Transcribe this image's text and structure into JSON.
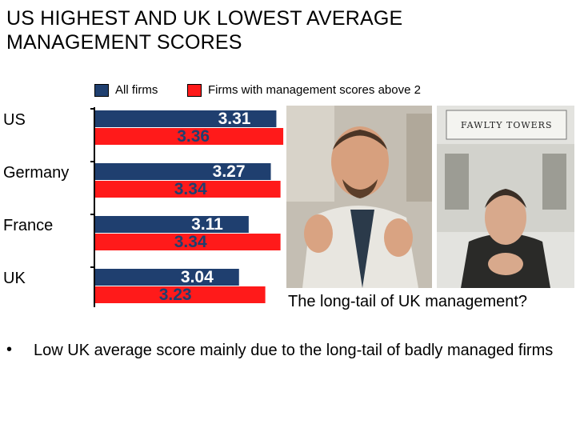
{
  "title_lines": [
    "US HIGHEST AND UK LOWEST AVERAGE",
    "MANAGEMENT SCORES"
  ],
  "colors": {
    "all_firms": "#1f3f6f",
    "above_2": "#ff1a1a",
    "axis": "#000000"
  },
  "chart_data": {
    "type": "bar",
    "orientation": "horizontal",
    "categories": [
      "US",
      "Germany",
      "France",
      "UK"
    ],
    "series": [
      {
        "name": "All firms",
        "values": [
          3.31,
          3.27,
          3.11,
          3.04
        ]
      },
      {
        "name": "Firms with management scores above 2",
        "values": [
          3.36,
          3.34,
          3.34,
          3.23
        ]
      }
    ],
    "data_labels": [
      [
        "3.31",
        "3.27",
        "3.11",
        "3.04"
      ],
      [
        "3.36",
        "3.34",
        "3.34",
        "3.23"
      ]
    ],
    "xlim": [
      2.0,
      3.4
    ],
    "legend_position": "top",
    "grid": false
  },
  "images": {
    "left_photo": "office-manager-photo",
    "right_photo": "hotel-owner-photo",
    "sign_text": "FAWLTY TOWERS"
  },
  "caption": "The long-tail of UK management?",
  "bullet_symbol": "•",
  "bullet_text": "Low UK average score mainly due to the long-tail of badly managed firms"
}
